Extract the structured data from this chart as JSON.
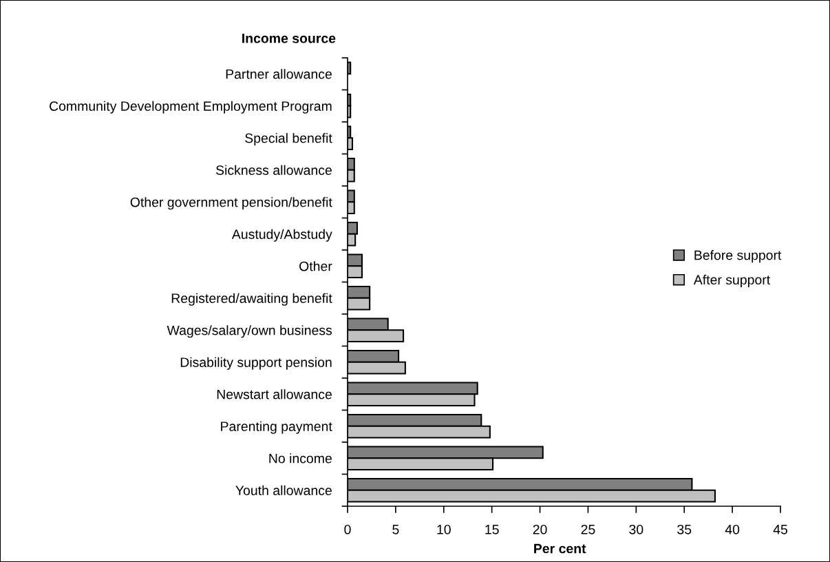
{
  "chart_data": {
    "type": "bar",
    "orientation": "horizontal",
    "ylabel": "Income source",
    "xlabel": "Per cent",
    "categories": [
      "Partner allowance",
      "Community Development Employment Program",
      "Special benefit",
      "Sickness allowance",
      "Other government pension/benefit",
      "Austudy/Abstudy",
      "Other",
      "Registered/awaiting benefit",
      "Wages/salary/own business",
      "Disability support pension",
      "Newstart allowance",
      "Parenting payment",
      "No income",
      "Youth allowance"
    ],
    "series": [
      {
        "name": "Before support",
        "color": "#808080",
        "values": [
          0.3,
          0.3,
          0.3,
          0.7,
          0.7,
          1.0,
          1.5,
          2.3,
          4.2,
          5.3,
          13.5,
          13.9,
          20.3,
          35.8
        ]
      },
      {
        "name": "After support",
        "color": "#c0c0c0",
        "values": [
          null,
          0.3,
          0.5,
          0.7,
          0.7,
          0.8,
          1.5,
          2.3,
          5.8,
          6.0,
          13.2,
          14.8,
          15.1,
          38.2
        ]
      }
    ],
    "xlim": [
      0,
      45
    ],
    "xticks": [
      0,
      5,
      10,
      15,
      20,
      25,
      30,
      35,
      40,
      45
    ],
    "grid": false,
    "legend": "right"
  }
}
